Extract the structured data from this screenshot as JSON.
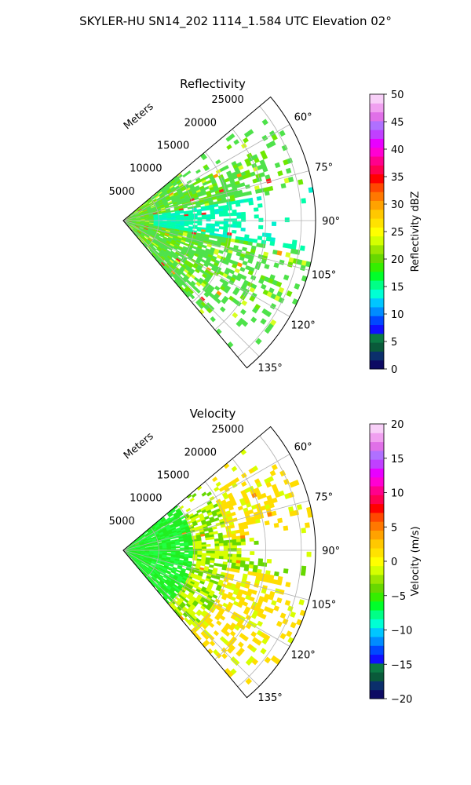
{
  "title": "SKYLER-HU  SN14_202  1114_1.584 UTC Elevation 02°",
  "chart_data": [
    {
      "type": "heatmap",
      "projection": "polar-sector",
      "title": "Reflectivity",
      "range_axis_label": "Meters",
      "range_ticks": [
        "5000",
        "10000",
        "15000",
        "20000",
        "25000"
      ],
      "range_tick_values": [
        5000,
        10000,
        15000,
        20000,
        25000
      ],
      "range_max": 27000,
      "angle_min_deg": 50,
      "angle_max_deg": 140,
      "angle_ticks": [
        "60°",
        "75°",
        "90°",
        "105°",
        "120°",
        "135°"
      ],
      "angle_tick_values": [
        60,
        75,
        90,
        105,
        120,
        135
      ],
      "grid": true,
      "colorbar": {
        "label": "Reflectivity dBZ",
        "min": 0,
        "max": 50,
        "ticks": [
          "0",
          "5",
          "10",
          "15",
          "20",
          "25",
          "30",
          "35",
          "40",
          "45",
          "50"
        ],
        "tick_values": [
          0,
          5,
          10,
          15,
          20,
          25,
          30,
          35,
          40,
          45,
          50
        ],
        "colors": [
          "#0d0a63",
          "#0b2f6b",
          "#0a5a3a",
          "#0b7a44",
          "#1010ff",
          "#0048ff",
          "#008cff",
          "#00c6ff",
          "#00ffd4",
          "#00ff86",
          "#00ff2a",
          "#35ee00",
          "#68d800",
          "#9be600",
          "#d4ff00",
          "#ffff00",
          "#ffe200",
          "#ffc800",
          "#ffa200",
          "#ff7800",
          "#ff4800",
          "#ff0000",
          "#ff0050",
          "#ff008c",
          "#ff00d2",
          "#e800ff",
          "#c040ff",
          "#b070ff",
          "#e070e8",
          "#f0a0f0",
          "#f8d0f8"
        ],
        "placement": "right"
      },
      "field_colors": {
        "base": "#4ee24a",
        "secondary": "#6ee800",
        "low": "#00ffaa",
        "lowest": "#00f0d0",
        "high": "#d8ff20",
        "peak": "#ff9a00",
        "max": "#ff2020"
      }
    },
    {
      "type": "heatmap",
      "projection": "polar-sector",
      "title": "Velocity",
      "range_axis_label": "Meters",
      "range_ticks": [
        "5000",
        "10000",
        "15000",
        "20000",
        "25000"
      ],
      "range_tick_values": [
        5000,
        10000,
        15000,
        20000,
        25000
      ],
      "range_max": 27000,
      "angle_min_deg": 50,
      "angle_max_deg": 140,
      "angle_ticks": [
        "60°",
        "75°",
        "90°",
        "105°",
        "120°",
        "135°"
      ],
      "angle_tick_values": [
        60,
        75,
        90,
        105,
        120,
        135
      ],
      "grid": true,
      "colorbar": {
        "label": "Velocity (m/s)",
        "min": -20,
        "max": 20,
        "ticks": [
          "−20",
          "−15",
          "−10",
          "−5",
          "0",
          "5",
          "10",
          "15",
          "20"
        ],
        "tick_values": [
          -20,
          -15,
          -10,
          -5,
          0,
          5,
          10,
          15,
          20
        ],
        "colors": [
          "#0d0a63",
          "#0b2f6b",
          "#0a5a3a",
          "#0b7a44",
          "#1010ff",
          "#0048ff",
          "#008cff",
          "#00c6ff",
          "#00ffd4",
          "#00ff86",
          "#00ff2a",
          "#35ee00",
          "#68d800",
          "#9be600",
          "#d4ff00",
          "#ffff00",
          "#ffe200",
          "#ffc800",
          "#ffa200",
          "#ff7800",
          "#ff4800",
          "#ff0000",
          "#ff0050",
          "#ff008c",
          "#ff00d2",
          "#e800ff",
          "#c040ff",
          "#b070ff",
          "#e070e8",
          "#f0a0f0",
          "#f8d0f8"
        ],
        "placement": "right"
      },
      "field_colors": {
        "base": "#20ee20",
        "secondary": "#66d800",
        "low": "#00ff5c",
        "lowest": "#20ff40",
        "high": "#d8ff00",
        "peak": "#ffdd00",
        "max": "#ff8800"
      }
    }
  ]
}
